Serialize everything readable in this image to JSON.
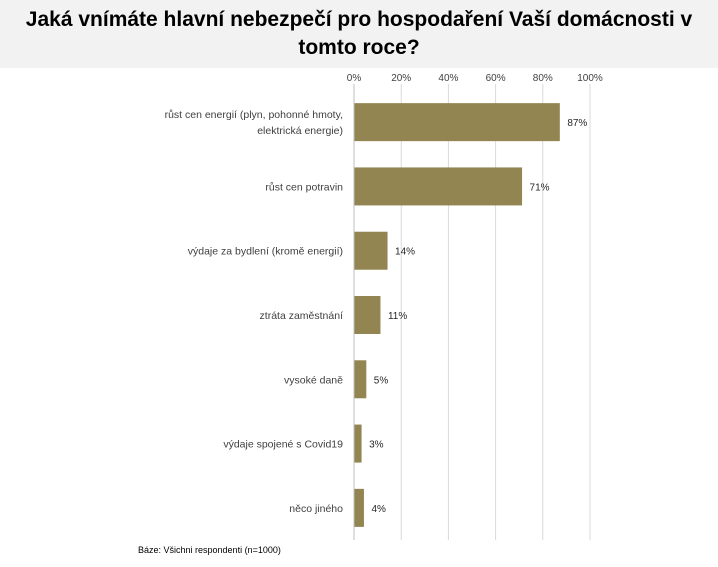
{
  "title": "Jaká vnímáte hlavní nebezpečí pro hospodaření Vaší domácnosti v\ntomto roce?",
  "footnote": "Báze: Všichni respondenti (n=1000)",
  "chart_data": {
    "type": "bar",
    "orientation": "horizontal",
    "categories": [
      "růst cen energií (plyn, pohonné hmoty,\nelektrická energie)",
      "růst cen potravin",
      "výdaje za bydlení (kromě energií)",
      "ztráta zaměstnání",
      "vysoké daně",
      "výdaje spojené s Covid19",
      "něco jiného"
    ],
    "values": [
      87,
      71,
      14,
      11,
      5,
      3,
      4
    ],
    "value_labels": [
      "87%",
      "71%",
      "14%",
      "11%",
      "5%",
      "3%",
      "4%"
    ],
    "xlim": [
      0,
      100
    ],
    "ticks": [
      0,
      20,
      40,
      60,
      80,
      100
    ],
    "tick_labels": [
      "0%",
      "20%",
      "40%",
      "60%",
      "80%",
      "100%"
    ],
    "axis_position": "top",
    "grid": true,
    "legend": "none",
    "bar_color": "#928552",
    "grid_color": "#d9d9d9"
  }
}
